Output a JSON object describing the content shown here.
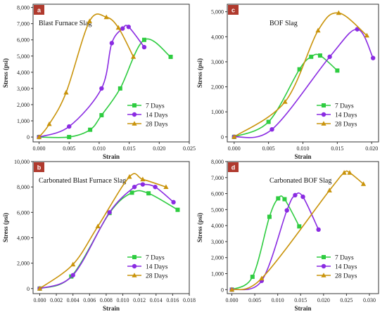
{
  "colors": {
    "7 Days": "#2ecc40",
    "14 Days": "#8a2be2",
    "28 Days": "#c9930a"
  },
  "chart_data": [
    {
      "type": "line",
      "panel_label": "a",
      "title": "Blast Furnace Slag",
      "xlabel": "Strain",
      "ylabel": "Stress (psi)",
      "xlim": [
        -0.001,
        0.025
      ],
      "ylim": [
        -300,
        8200
      ],
      "xticks": [
        "0.000",
        "0.005",
        "0.010",
        "0.015",
        "0.020",
        "0.025"
      ],
      "xtick_values": [
        0,
        0.005,
        0.01,
        0.015,
        0.02,
        0.025
      ],
      "yticks": [
        "0",
        "1,000",
        "2,000",
        "3,000",
        "4,000",
        "5,000",
        "6,000",
        "7,000",
        "8,000"
      ],
      "ytick_values": [
        0,
        1000,
        2000,
        3000,
        4000,
        5000,
        6000,
        7000,
        8000
      ],
      "title_pos": "top-left",
      "legend_pos": "bottom-right",
      "series": [
        {
          "name": "7 Days",
          "x": [
            0.0,
            0.005,
            0.0085,
            0.0104,
            0.0135,
            0.0175,
            0.0219
          ],
          "y": [
            0,
            0,
            450,
            1350,
            3000,
            6000,
            4950
          ]
        },
        {
          "name": "14 Days",
          "x": [
            0.0,
            0.005,
            0.0104,
            0.0121,
            0.0139,
            0.0149,
            0.0175
          ],
          "y": [
            0,
            650,
            3000,
            5800,
            6700,
            6800,
            5550
          ]
        },
        {
          "name": "28 Days",
          "x": [
            0.0,
            0.0017,
            0.0045,
            0.0084,
            0.0112,
            0.0132,
            0.0157
          ],
          "y": [
            0,
            800,
            2750,
            7150,
            7400,
            6750,
            4950
          ]
        }
      ]
    },
    {
      "type": "line",
      "panel_label": "c",
      "title": "BOF Slag",
      "xlabel": "Strain",
      "ylabel": "Stress (psi)",
      "xlim": [
        -0.001,
        0.021
      ],
      "ylim": [
        -200,
        5300
      ],
      "xticks": [
        "0.000",
        "0.005",
        "0.010",
        "0.015",
        "0.020"
      ],
      "xtick_values": [
        0,
        0.005,
        0.01,
        0.015,
        0.02
      ],
      "yticks": [
        "0",
        "1,000",
        "2,000",
        "3,000",
        "4,000",
        "5,000"
      ],
      "ytick_values": [
        0,
        1000,
        2000,
        3000,
        4000,
        5000
      ],
      "title_pos": "top-left",
      "legend_pos": "bottom-right",
      "series": [
        {
          "name": "7 Days",
          "x": [
            0.0,
            0.005,
            0.0095,
            0.0112,
            0.0125,
            0.015
          ],
          "y": [
            0,
            600,
            2700,
            3200,
            3250,
            2650
          ]
        },
        {
          "name": "14 Days",
          "x": [
            0.0,
            0.0055,
            0.0139,
            0.0179,
            0.0202
          ],
          "y": [
            0,
            300,
            3200,
            4300,
            3150
          ]
        },
        {
          "name": "28 Days",
          "x": [
            0.0,
            0.0074,
            0.0122,
            0.0152,
            0.0193
          ],
          "y": [
            0,
            1400,
            4250,
            4950,
            4050
          ]
        }
      ]
    },
    {
      "type": "line",
      "panel_label": "b",
      "title": "Carbonated Blast Furnace Slag",
      "xlabel": "Strain",
      "ylabel": "Stress (psi)",
      "xlim": [
        -0.0008,
        0.018
      ],
      "ylim": [
        -400,
        10000
      ],
      "xticks": [
        "0.000",
        "0.002",
        "0.004",
        "0.006",
        "0.008",
        "0.010",
        "0.012",
        "0.014",
        "0.016",
        "0.018"
      ],
      "xtick_values": [
        0,
        0.002,
        0.004,
        0.006,
        0.008,
        0.01,
        0.012,
        0.014,
        0.016,
        0.018
      ],
      "yticks": [
        "0",
        "2,000",
        "4,000",
        "6,000",
        "8,000",
        "10,000"
      ],
      "ytick_values": [
        0,
        2000,
        4000,
        6000,
        8000,
        10000
      ],
      "title_pos": "top-left",
      "legend_pos": "bottom-right",
      "series": [
        {
          "name": "7 Days",
          "x": [
            0.0,
            0.0038,
            0.0084,
            0.0111,
            0.0131,
            0.0166
          ],
          "y": [
            0,
            950,
            5950,
            7550,
            7500,
            6200
          ]
        },
        {
          "name": "14 Days",
          "x": [
            0.0,
            0.004,
            0.0084,
            0.0114,
            0.0124,
            0.0139,
            0.0161
          ],
          "y": [
            0,
            1050,
            6000,
            8000,
            8200,
            8000,
            6800
          ]
        },
        {
          "name": "28 Days",
          "x": [
            0.0,
            0.004,
            0.007,
            0.0108,
            0.0124,
            0.0152
          ],
          "y": [
            0,
            1900,
            4900,
            8800,
            8600,
            8000
          ]
        }
      ]
    },
    {
      "type": "line",
      "panel_label": "d",
      "title": "Carbonated BOF Slag",
      "xlabel": "Strain",
      "ylabel": "Stress (psi)",
      "xlim": [
        -0.001,
        0.032
      ],
      "ylim": [
        -250,
        8000
      ],
      "xticks": [
        "0.000",
        "0.005",
        "0.010",
        "0.015",
        "0.020",
        "0.025",
        "0.030"
      ],
      "xtick_values": [
        0,
        0.005,
        0.01,
        0.015,
        0.02,
        0.025,
        0.03
      ],
      "yticks": [
        "0",
        "1,000",
        "2,000",
        "3,000",
        "4,000",
        "5,000",
        "6,000",
        "7,000",
        "8,000"
      ],
      "ytick_values": [
        0,
        1000,
        2000,
        3000,
        4000,
        5000,
        6000,
        7000,
        8000
      ],
      "title_pos": "top-left",
      "legend_pos": "bottom-right",
      "series": [
        {
          "name": "7 Days",
          "x": [
            0.0,
            0.0045,
            0.0082,
            0.0101,
            0.0115,
            0.0147
          ],
          "y": [
            0,
            800,
            4550,
            5700,
            5650,
            3950
          ]
        },
        {
          "name": "14 Days",
          "x": [
            0.0,
            0.0065,
            0.012,
            0.0138,
            0.0155,
            0.0189
          ],
          "y": [
            0,
            550,
            4950,
            5900,
            5800,
            3750
          ]
        },
        {
          "name": "28 Days",
          "x": [
            0.0,
            0.0065,
            0.0213,
            0.0245,
            0.0257,
            0.0287
          ],
          "y": [
            0,
            700,
            6200,
            7300,
            7300,
            6600
          ]
        }
      ]
    }
  ]
}
